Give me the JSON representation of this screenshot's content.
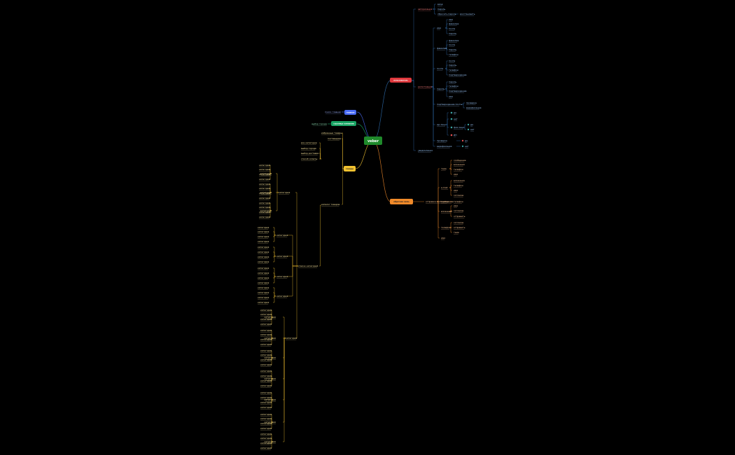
{
  "root": {
    "label": "veber",
    "color": "#1f8a2b"
  },
  "branches": {
    "blue": {
      "label": "главная",
      "color": "#4a6cf7",
      "children": [
        "поиск главная"
      ]
    },
    "green": {
      "label": "страница компании",
      "color": "#19a464",
      "children": [
        "выбор города"
      ]
    },
    "yellow": {
      "label": "товары",
      "color": "#f2c230",
      "children": [
        "избранные товары",
        "поставщики"
      ],
      "filters": [
        "все категории",
        "выбор города",
        "выбор доставки",
        "способ оплаты"
      ],
      "catalog_label": "каталог товаров",
      "list_label": "список категорий"
    },
    "red": {
      "label": "пользователь",
      "color": "#e0393e",
      "top": [
        "авторизация",
        "вход",
        "пароль",
        "сбросить пароль",
        "восстановить"
      ],
      "middle_label": "регистрация",
      "middle": [
        "имя",
        "фамилия",
        "почта",
        "пароль",
        "телефон",
        "подтверждение"
      ],
      "bottom": [
        "подтверждение почты",
        "проверка",
        "верификация",
        "да",
        "нет",
        "юр лицо",
        "физ лицо",
        "ИП"
      ],
      "last": "уведомления"
    },
    "orange": {
      "label": "обратная связь",
      "color": "#f08a2a",
      "mid_label": "отправка сообщения",
      "children": [
        "тема",
        "e-mail",
        "сообщение",
        "вложения",
        "телефон",
        "имя",
        "согласие",
        "отправить"
      ]
    }
  },
  "leaf_text": "категория"
}
